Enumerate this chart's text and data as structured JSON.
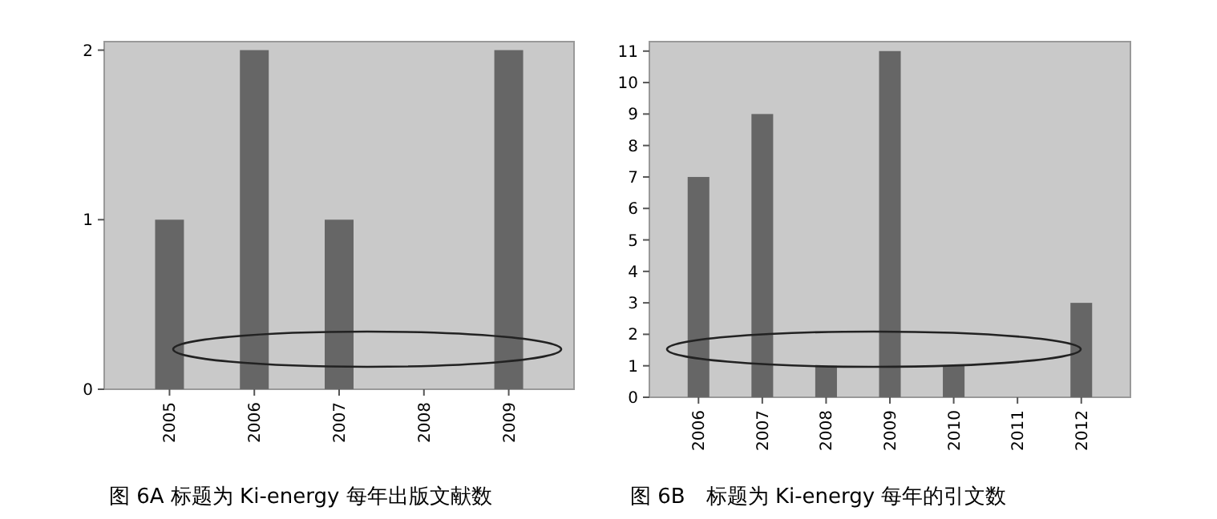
{
  "chart_data": [
    {
      "type": "bar",
      "title": "图 6A 标题为 Ki-energy 每年出版文献数",
      "categories": [
        "2005",
        "2006",
        "2007",
        "2008",
        "2009"
      ],
      "values": [
        1,
        2,
        1,
        0,
        2
      ],
      "color": "#666666",
      "ylim": [
        0,
        2.05
      ],
      "yticks": [
        0,
        1,
        2
      ],
      "grid": false
    },
    {
      "type": "bar",
      "title": "图 6B　标题为 Ki-energy 每年的引文数",
      "categories": [
        "2006",
        "2007",
        "2008",
        "2009",
        "2010",
        "2011",
        "2012"
      ],
      "values": [
        7,
        9,
        1,
        11,
        1,
        0,
        3
      ],
      "color": "#666666",
      "ylim": [
        0,
        11.3
      ],
      "yticks": [
        0,
        1,
        2,
        3,
        4,
        5,
        6,
        7,
        8,
        9,
        10,
        11
      ],
      "grid": false
    }
  ]
}
